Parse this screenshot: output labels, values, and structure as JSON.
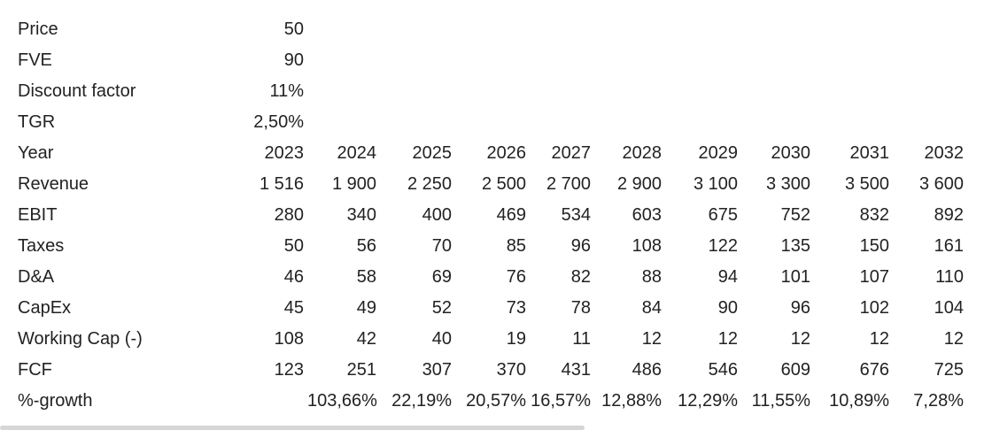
{
  "table": {
    "rows": [
      [
        "Price",
        "50"
      ],
      [
        "FVE",
        "90"
      ],
      [
        "Discount factor",
        "11%"
      ],
      [
        "TGR",
        "2,50%"
      ],
      [
        "Year",
        "2023",
        "2024",
        "2025",
        "2026",
        "2027",
        "2028",
        "2029",
        "2030",
        "2031",
        "2032"
      ],
      [
        "Revenue",
        "1 516",
        "1 900",
        "2 250",
        "2 500",
        "2 700",
        "2 900",
        "3 100",
        "3 300",
        "3 500",
        "3 600"
      ],
      [
        "EBIT",
        "280",
        "340",
        "400",
        "469",
        "534",
        "603",
        "675",
        "752",
        "832",
        "892"
      ],
      [
        "Taxes",
        "50",
        "56",
        "70",
        "85",
        "96",
        "108",
        "122",
        "135",
        "150",
        "161"
      ],
      [
        "D&A",
        "46",
        "58",
        "69",
        "76",
        "82",
        "88",
        "94",
        "101",
        "107",
        "110"
      ],
      [
        "CapEx",
        "45",
        "49",
        "52",
        "73",
        "78",
        "84",
        "90",
        "96",
        "102",
        "104"
      ],
      [
        "Working Cap (-)",
        "108",
        "42",
        "40",
        "19",
        "11",
        "12",
        "12",
        "12",
        "12",
        "12"
      ],
      [
        "FCF",
        "123",
        "251",
        "307",
        "370",
        "431",
        "486",
        "546",
        "609",
        "676",
        "725"
      ],
      [
        "%-growth",
        null,
        "103,66%",
        "22,19%",
        "20,57%",
        "16,57%",
        "12,88%",
        "12,29%",
        "11,55%",
        "10,89%",
        "7,28%"
      ]
    ]
  }
}
